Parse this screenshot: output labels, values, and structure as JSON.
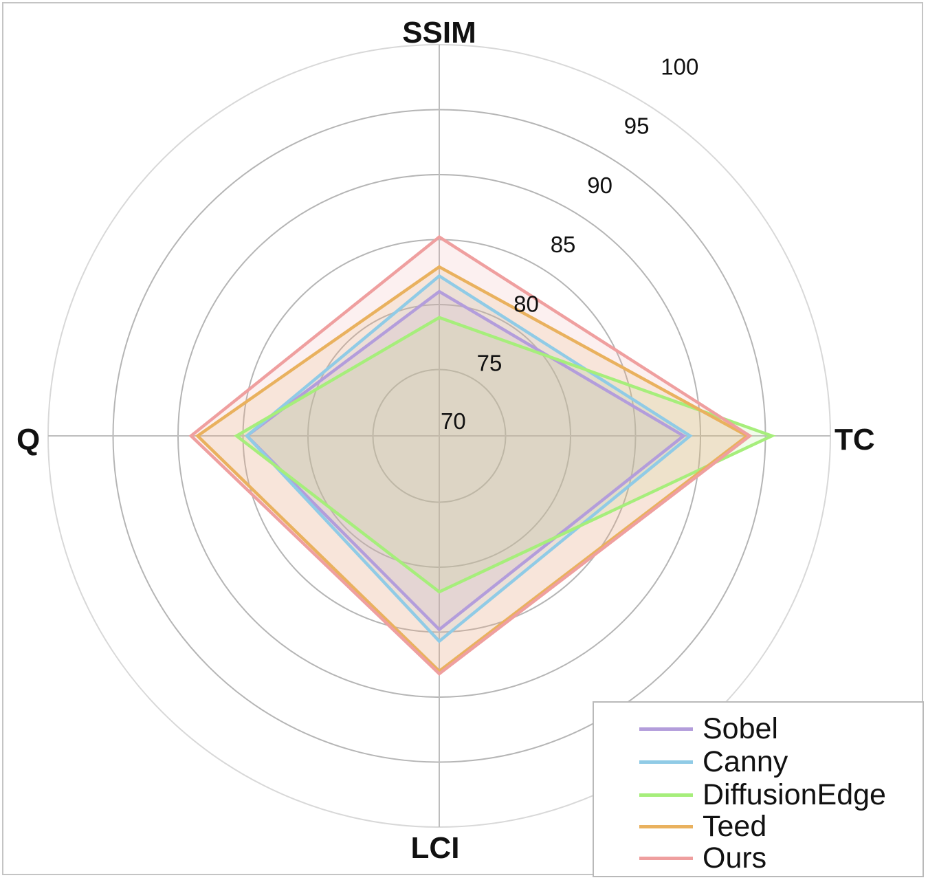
{
  "chart_data": {
    "type": "radar",
    "axes": [
      "SSIM",
      "TC",
      "LCI",
      "Q"
    ],
    "rlim": [
      70,
      100
    ],
    "radial_ticks": [
      "70",
      "75",
      "80",
      "85",
      "90",
      "95",
      "100"
    ],
    "grid": true,
    "legend_position": "bottom-right",
    "series": [
      {
        "name": "Sobel",
        "color": "#b39ddb",
        "values": [
          81.0,
          88.7,
          84.8,
          84.7
        ]
      },
      {
        "name": "Canny",
        "color": "#90cbe6",
        "values": [
          82.2,
          89.2,
          85.7,
          84.7
        ]
      },
      {
        "name": "DiffusionEdge",
        "color": "#a6ee7b",
        "values": [
          79.0,
          95.5,
          81.9,
          85.5
        ]
      },
      {
        "name": "Teed",
        "color": "#e9b15e",
        "values": [
          82.9,
          93.6,
          88.0,
          88.5
        ]
      },
      {
        "name": "Ours",
        "color": "#ef9f9f",
        "values": [
          85.2,
          93.8,
          88.2,
          89.0
        ]
      }
    ]
  }
}
